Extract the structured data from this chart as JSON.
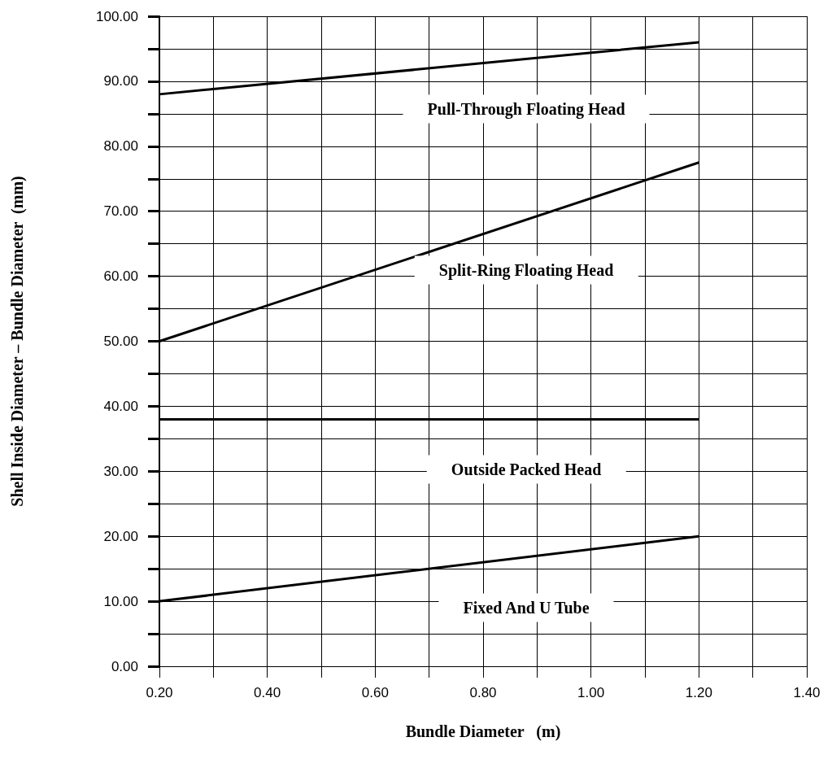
{
  "chart_data": {
    "type": "line",
    "xlabel": "Bundle Diameter   (m)",
    "ylabel": "Shell Inside Diameter – Bundle Diameter  (mm)",
    "x": [
      0.2,
      1.2
    ],
    "series": [
      {
        "name": "Pull-Through Floating Head",
        "color": "#000000",
        "values": [
          88,
          96
        ]
      },
      {
        "name": "Split-Ring Floating Head",
        "color": "#000000",
        "values": [
          50,
          77.5
        ]
      },
      {
        "name": "Outside Packed Head",
        "color": "#000000",
        "values": [
          38,
          38
        ]
      },
      {
        "name": "Fixed And U Tube",
        "color": "#000000",
        "values": [
          10,
          20
        ]
      }
    ],
    "xlim": [
      0.2,
      1.4
    ],
    "xticks": [
      {
        "value": 0.2,
        "label": "0.20"
      },
      {
        "value": 0.3,
        "label": null
      },
      {
        "value": 0.4,
        "label": "0.40"
      },
      {
        "value": 0.5,
        "label": null
      },
      {
        "value": 0.6,
        "label": "0.60"
      },
      {
        "value": 0.7,
        "label": null
      },
      {
        "value": 0.8,
        "label": "0.80"
      },
      {
        "value": 0.9,
        "label": null
      },
      {
        "value": 1.0,
        "label": "1.00"
      },
      {
        "value": 1.1,
        "label": null
      },
      {
        "value": 1.2,
        "label": "1.20"
      },
      {
        "value": 1.3,
        "label": null
      },
      {
        "value": 1.4,
        "label": "1.40"
      }
    ],
    "ylim": [
      0,
      100
    ],
    "yticks": [
      {
        "value": 0,
        "label": "0.00"
      },
      {
        "value": 5,
        "label": null
      },
      {
        "value": 10,
        "label": "10.00"
      },
      {
        "value": 15,
        "label": null
      },
      {
        "value": 20,
        "label": "20.00"
      },
      {
        "value": 25,
        "label": null
      },
      {
        "value": 30,
        "label": "30.00"
      },
      {
        "value": 35,
        "label": null
      },
      {
        "value": 40,
        "label": "40.00"
      },
      {
        "value": 45,
        "label": null
      },
      {
        "value": 50,
        "label": "50.00"
      },
      {
        "value": 55,
        "label": null
      },
      {
        "value": 60,
        "label": "60.00"
      },
      {
        "value": 65,
        "label": null
      },
      {
        "value": 70,
        "label": "70.00"
      },
      {
        "value": 75,
        "label": null
      },
      {
        "value": 80,
        "label": "80.00"
      },
      {
        "value": 85,
        "label": null
      },
      {
        "value": 90,
        "label": "90.00"
      },
      {
        "value": 95,
        "label": null
      },
      {
        "value": 100,
        "label": "100.00"
      }
    ],
    "grid": true,
    "marker": "none",
    "line_style": "solid"
  }
}
